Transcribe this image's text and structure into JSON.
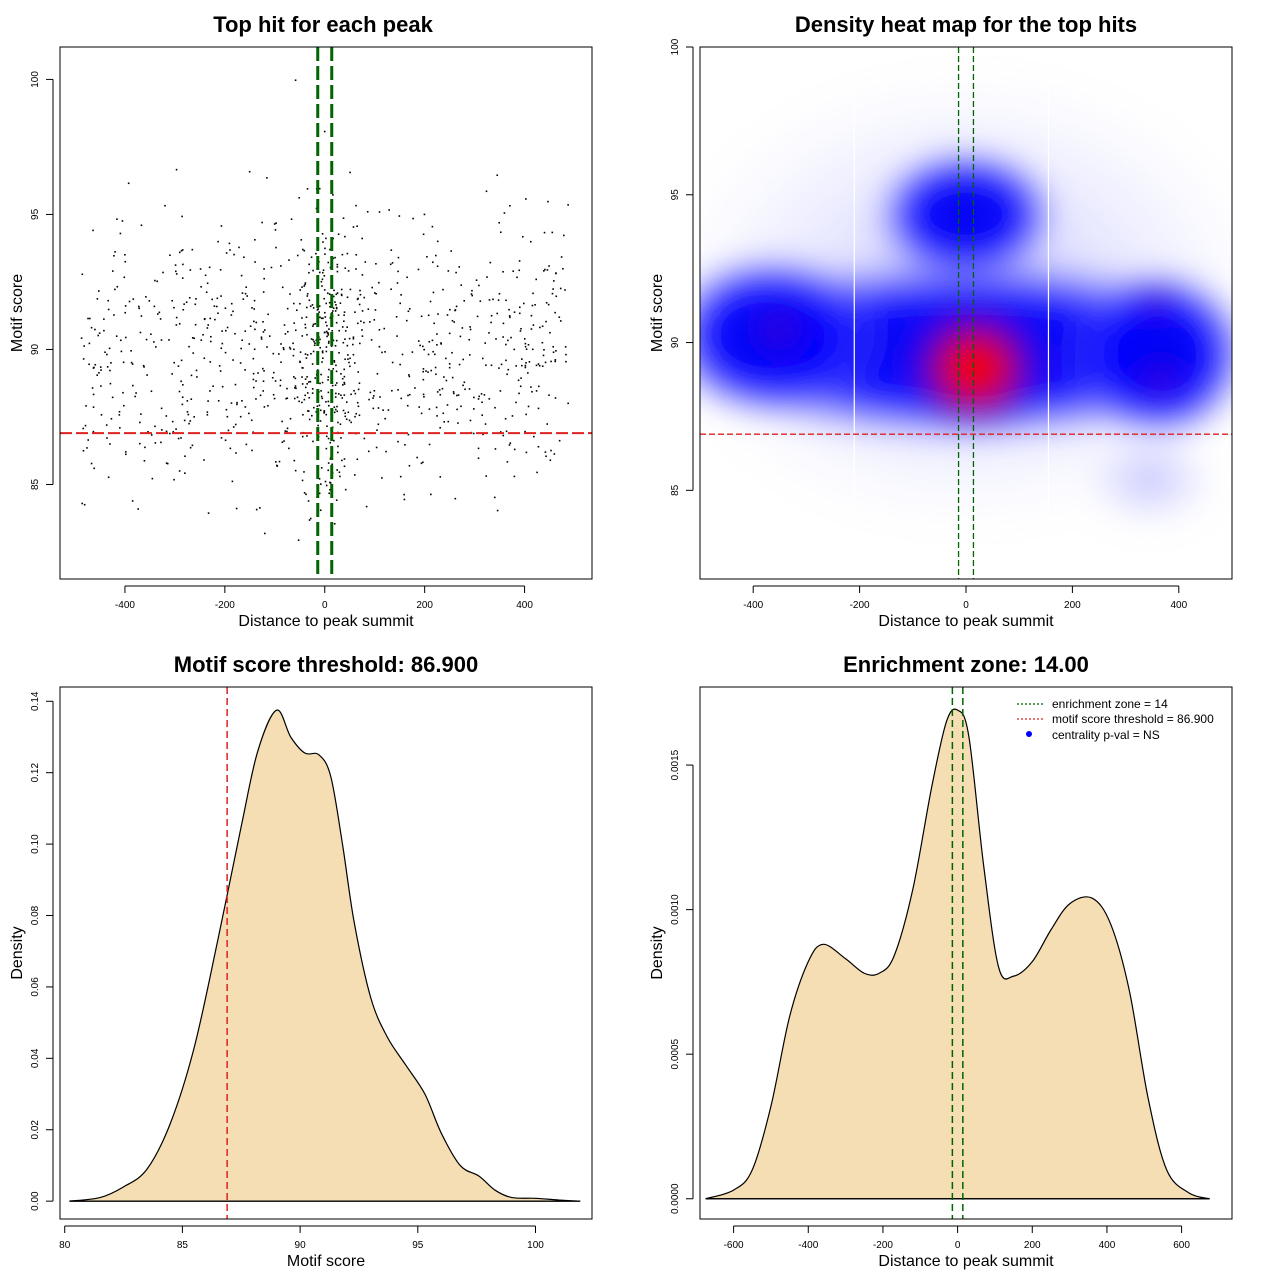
{
  "chart_data": [
    {
      "type": "scatter",
      "title": "Top hit for each peak",
      "xlabel": "Distance to peak summit",
      "ylabel": "Motif score",
      "xlim": [
        -530,
        535
      ],
      "ylim": [
        81.5,
        101.2
      ],
      "xticks": [
        -400,
        -200,
        0,
        200,
        400
      ],
      "yticks": [
        85,
        90,
        95,
        100
      ],
      "xtick_labels": [
        "-400",
        "-200",
        "0",
        "200",
        "400"
      ],
      "ytick_labels": [
        "85",
        "90",
        "95",
        "100"
      ],
      "threshold": 86.9,
      "enrichment_zone": [
        -14,
        14
      ],
      "point_count": 1100,
      "point_color": "#000000",
      "threshold_color": "#dd2222",
      "zone_color": "#006400"
    },
    {
      "type": "heatmap",
      "title": "Density heat map for the top hits",
      "xlabel": "Distance to peak summit",
      "ylabel": "Motif score",
      "xlim": [
        -500,
        500
      ],
      "ylim": [
        82,
        100
      ],
      "xticks": [
        -400,
        -200,
        0,
        200,
        400
      ],
      "yticks": [
        85,
        90,
        95,
        100
      ],
      "xtick_labels": [
        "-400",
        "-200",
        "0",
        "200",
        "400"
      ],
      "ytick_labels": [
        "85",
        "90",
        "95",
        "100"
      ],
      "threshold": 86.9,
      "enrichment_zone": [
        -14,
        14
      ],
      "white_lines_x": [
        -210,
        155
      ],
      "hotspots": [
        {
          "x": 15,
          "y": 89.0,
          "level": "high"
        },
        {
          "x": -340,
          "y": 90.3,
          "level": "medium"
        },
        {
          "x": 350,
          "y": 88.8,
          "level": "medium"
        },
        {
          "x": 360,
          "y": 91.5,
          "level": "medium"
        },
        {
          "x": 0,
          "y": 94.5,
          "level": "low"
        }
      ],
      "colors": [
        "#ffffff",
        "#0000ff",
        "#ff0000"
      ]
    },
    {
      "type": "area",
      "title": "Motif score threshold: 86.900",
      "xlabel": "Motif score",
      "ylabel": "Density",
      "xlim": [
        79.8,
        102.4
      ],
      "ylim": [
        -0.005,
        0.144
      ],
      "xticks": [
        80,
        85,
        90,
        95,
        100
      ],
      "yticks": [
        0.0,
        0.02,
        0.04,
        0.06,
        0.08,
        0.1,
        0.12,
        0.14
      ],
      "xtick_labels": [
        "80",
        "85",
        "90",
        "95",
        "100"
      ],
      "ytick_labels": [
        "0.00",
        "0.02",
        "0.04",
        "0.06",
        "0.08",
        "0.10",
        "0.12",
        "0.14"
      ],
      "x": [
        80.2,
        81.5,
        82.5,
        83.5,
        84.5,
        85.5,
        86.5,
        87.5,
        88.2,
        89.0,
        89.6,
        90.2,
        90.8,
        91.3,
        91.8,
        92.3,
        93.0,
        93.7,
        94.5,
        95.3,
        96.0,
        96.8,
        97.6,
        98.3,
        99.0,
        100.0,
        101.0,
        101.9
      ],
      "y": [
        0.0,
        0.001,
        0.004,
        0.009,
        0.022,
        0.043,
        0.073,
        0.105,
        0.126,
        0.1375,
        0.13,
        0.1255,
        0.125,
        0.119,
        0.1,
        0.078,
        0.057,
        0.046,
        0.038,
        0.03,
        0.019,
        0.01,
        0.007,
        0.003,
        0.001,
        0.0008,
        0.0003,
        0.0
      ],
      "threshold": 86.9,
      "fill_color": "#f5deb3",
      "threshold_color": "#dd2222"
    },
    {
      "type": "area",
      "title": "Enrichment zone: 14.00",
      "xlabel": "Distance to peak summit",
      "ylabel": "Density",
      "xlim": [
        -690,
        735
      ],
      "ylim": [
        -7e-05,
        0.00177
      ],
      "xticks": [
        -600,
        -400,
        -200,
        0,
        200,
        400,
        600
      ],
      "yticks": [
        0.0,
        0.0005,
        0.001,
        0.0015
      ],
      "xtick_labels": [
        "-600",
        "-400",
        "-200",
        "0",
        "200",
        "400",
        "600"
      ],
      "ytick_labels": [
        "0.0000",
        "0.0005",
        "0.0010",
        "0.0015"
      ],
      "x": [
        -675,
        -600,
        -550,
        -500,
        -450,
        -400,
        -360,
        -300,
        -250,
        -210,
        -170,
        -120,
        -70,
        -30,
        0,
        30,
        70,
        110,
        150,
        200,
        250,
        300,
        360,
        410,
        460,
        510,
        560,
        620,
        675
      ],
      "y": [
        0.0,
        3e-05,
        0.0001,
        0.00032,
        0.00063,
        0.00082,
        0.00088,
        0.00083,
        0.00078,
        0.00078,
        0.00084,
        0.00107,
        0.00142,
        0.00165,
        0.00169,
        0.0016,
        0.00115,
        0.0008,
        0.00077,
        0.00082,
        0.00093,
        0.00102,
        0.00104,
        0.00095,
        0.00072,
        0.00035,
        0.0001,
        2e-05,
        0.0
      ],
      "enrichment_zone": [
        -14,
        14
      ],
      "fill_color": "#f5deb3",
      "zone_color": "#006400",
      "legend": {
        "placement": "top-right",
        "entries": [
          {
            "label": "enrichment zone = 14",
            "color": "#006400",
            "style": "dotted-line"
          },
          {
            "label": "motif score threshold = 86.900",
            "color": "#dd2222",
            "style": "dotted-line"
          },
          {
            "label": "centrality p-val = NS",
            "color": "#0000ff",
            "style": "point"
          }
        ]
      }
    }
  ]
}
